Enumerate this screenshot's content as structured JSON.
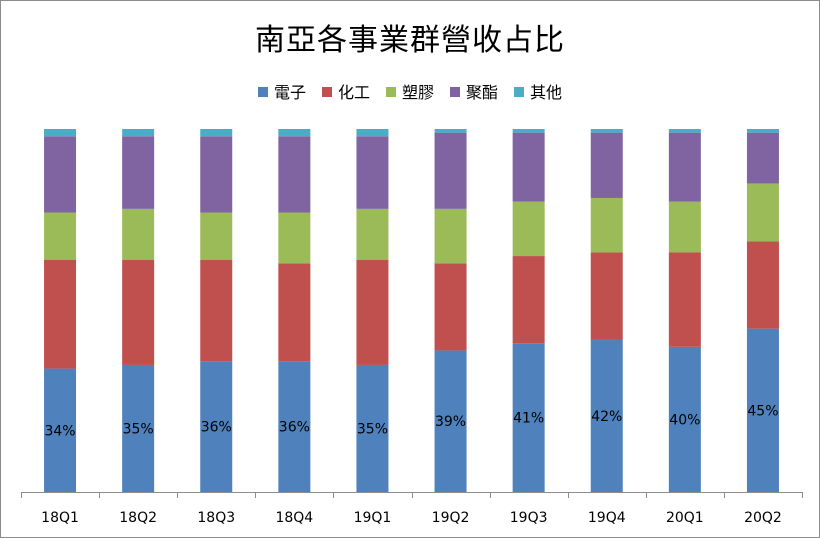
{
  "chart_data": {
    "type": "bar",
    "stacked": true,
    "percent_stacked": true,
    "title": "南亞各事業群營收占比",
    "categories": [
      "18Q1",
      "18Q2",
      "18Q3",
      "18Q4",
      "19Q1",
      "19Q2",
      "19Q3",
      "19Q4",
      "20Q1",
      "20Q2"
    ],
    "series": [
      {
        "name": "電子",
        "color": "#4f81bd",
        "values": [
          34,
          35,
          36,
          36,
          35,
          39,
          41,
          42,
          40,
          45
        ]
      },
      {
        "name": "化工",
        "color": "#c0504d",
        "values": [
          30,
          29,
          28,
          27,
          29,
          24,
          24,
          24,
          26,
          24
        ]
      },
      {
        "name": "塑膠",
        "color": "#9bbb59",
        "values": [
          13,
          14,
          13,
          14,
          14,
          15,
          15,
          15,
          14,
          16
        ]
      },
      {
        "name": "聚酯",
        "color": "#8064a2",
        "values": [
          21,
          20,
          21,
          21,
          20,
          21,
          19,
          18,
          19,
          14
        ]
      },
      {
        "name": "其他",
        "color": "#4bacc6",
        "values": [
          2,
          2,
          2,
          2,
          2,
          1,
          1,
          1,
          1,
          1
        ]
      }
    ],
    "data_labels": {
      "series": "電子",
      "texts": [
        "34%",
        "35%",
        "36%",
        "36%",
        "35%",
        "39%",
        "41%",
        "42%",
        "40%",
        "45%"
      ]
    },
    "ylim": [
      0,
      100
    ],
    "grid": false,
    "legend_position": "top",
    "y_axis_visible": false
  }
}
